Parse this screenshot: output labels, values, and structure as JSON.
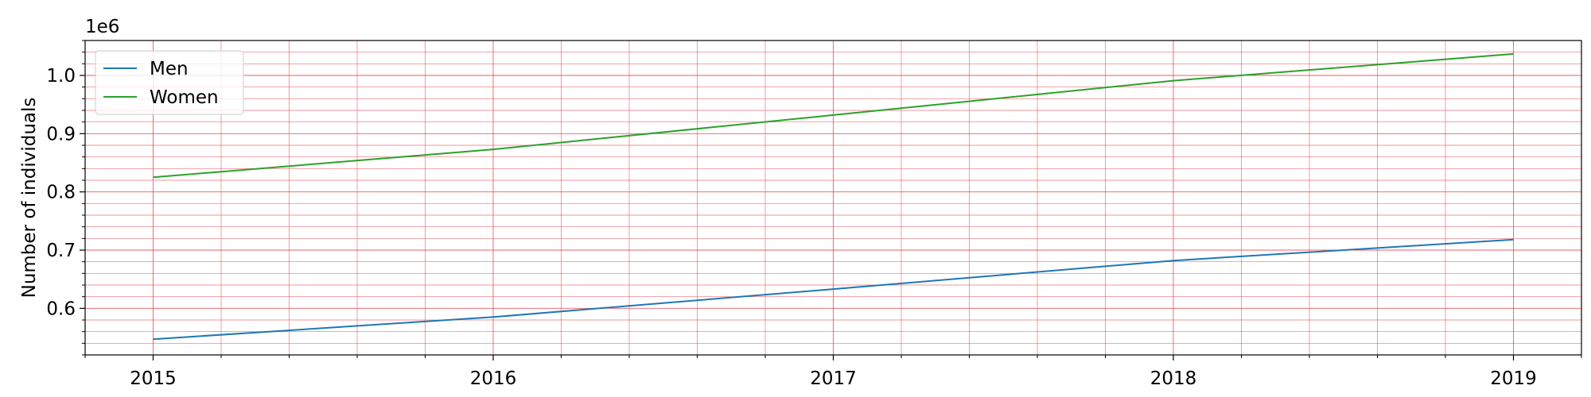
{
  "chart_data": {
    "type": "line",
    "x_type": "year",
    "x": [
      2015,
      2016,
      2017,
      2018,
      2019
    ],
    "x_ticks": [
      "2015",
      "2016",
      "2017",
      "2018",
      "2019"
    ],
    "xlim": [
      2014.8,
      2019.2
    ],
    "ylim": [
      520000,
      1060000
    ],
    "y_ticks": [
      {
        "value": 600000,
        "label": "0.6"
      },
      {
        "value": 700000,
        "label": "0.7"
      },
      {
        "value": 800000,
        "label": "0.8"
      },
      {
        "value": 900000,
        "label": "0.9"
      },
      {
        "value": 1000000,
        "label": "1.0"
      }
    ],
    "y_offset_label": "1e6",
    "ylabel": "Number of individuals",
    "xlabel": "",
    "title": "",
    "series": [
      {
        "name": "Men",
        "color": "#1f77b4",
        "values": [
          547000,
          585000,
          633000,
          682000,
          718000
        ]
      },
      {
        "name": "Women",
        "color": "#2ca02c",
        "values": [
          825000,
          873000,
          932000,
          991000,
          1037000
        ]
      }
    ],
    "grid": true,
    "grid_color": "#e8434b",
    "legend_position": "upper-left"
  }
}
